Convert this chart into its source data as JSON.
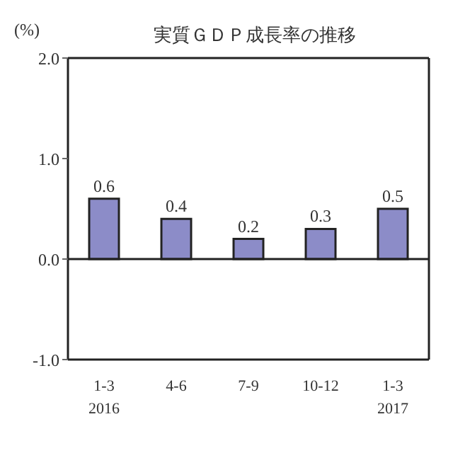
{
  "chart_data": {
    "type": "bar",
    "title": "実質ＧＤＰ成長率の推移",
    "ylabel": "(%)",
    "categories": [
      "1-3\n2016",
      "4-6",
      "7-9",
      "10-12",
      "1-3\n2017"
    ],
    "values": [
      0.6,
      0.4,
      0.2,
      0.3,
      0.5
    ],
    "color": "#8c8cc8",
    "ylim": [
      -1,
      2
    ],
    "yticks": [
      {
        "value": 2,
        "label": "2.0"
      },
      {
        "value": 1,
        "label": "1.0"
      },
      {
        "value": 0,
        "label": "0.0"
      },
      {
        "value": -1,
        "label": "-1.0"
      }
    ],
    "ref_lines": [
      {
        "axis": "y",
        "value": 0
      }
    ],
    "data_labels": true,
    "grid": false
  }
}
